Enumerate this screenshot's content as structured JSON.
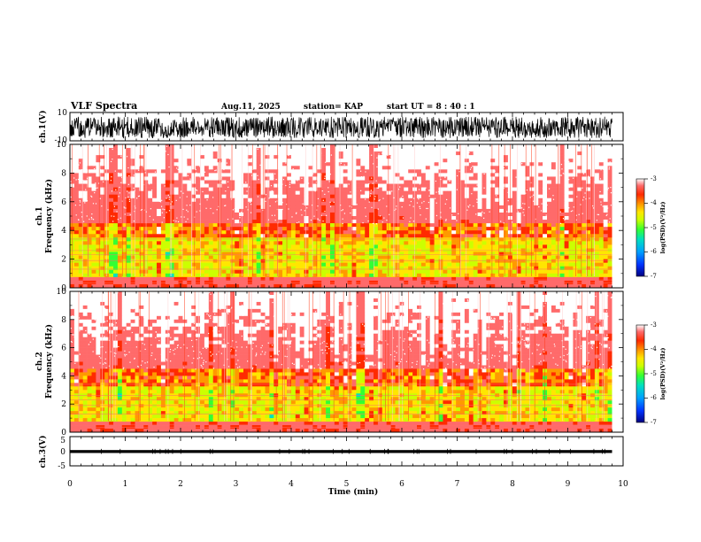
{
  "header": {
    "title": "VLF Spectra",
    "date": "Aug.11, 2025",
    "station": "station= KAP",
    "start_ut": "start  UT  =   8  : 40 : 1"
  },
  "colors": {
    "spectrogram_scale": [
      "#000080",
      "#0033ff",
      "#00a0ff",
      "#00e0c0",
      "#33ff33",
      "#ccff00",
      "#ffe600",
      "#ff9900",
      "#ff2a00",
      "#ff6a6a",
      "#ffffff"
    ],
    "waveform": "#000000"
  },
  "chart_data": [
    {
      "id": "ch1_waveform",
      "type": "line",
      "ylabel": "ch.1(V)",
      "ylim": [
        -10,
        10
      ],
      "ytick_labels": [
        "10",
        "-10"
      ],
      "xlim": [
        0,
        10
      ],
      "description_values": {
        "amplitude_range_V": [
          -8,
          7
        ],
        "data_end_min": 9.8
      }
    },
    {
      "id": "ch1_spectrogram",
      "type": "heatmap",
      "ylabel_line1": "ch.1",
      "ylabel_line2": "Frequency  (kHz)",
      "ylim": [
        0,
        10
      ],
      "yticks": [
        0,
        2,
        4,
        6,
        8,
        10
      ],
      "ytick_labels": [
        "0",
        "2",
        "4",
        "6",
        "8",
        "10"
      ],
      "xlim": [
        0,
        10
      ],
      "data_end_min": 9.8,
      "bands_kHz": {
        "low_noise_red": [
          0,
          0.8
        ],
        "green_yellow": [
          1.0,
          3.4
        ],
        "yellow_red_transition": [
          3.4,
          4.5
        ],
        "red_white_speckle": [
          4.5,
          10
        ]
      },
      "colorbar": {
        "title": "log(PSD)(V²/Hz)",
        "range": [
          -7,
          -3
        ],
        "tick_labels": [
          "-3",
          "-4",
          "-5",
          "-6",
          "-7"
        ]
      }
    },
    {
      "id": "ch2_spectrogram",
      "type": "heatmap",
      "ylabel_line1": "ch.2",
      "ylabel_line2": "Frequency  (kHz)",
      "ylim": [
        0,
        10
      ],
      "yticks": [
        0,
        2,
        4,
        6,
        8,
        10
      ],
      "ytick_labels": [
        "0",
        "2",
        "4",
        "6",
        "8",
        "10"
      ],
      "xlim": [
        0,
        10
      ],
      "data_end_min": 9.8,
      "bands_kHz": {
        "low_noise_red": [
          0,
          0.8
        ],
        "green_yellow": [
          1.0,
          3.2
        ],
        "yellow_red_transition": [
          3.2,
          4.5
        ],
        "red_white_speckle": [
          4.5,
          10
        ]
      },
      "colorbar": {
        "title": "log(PSD)(V²/Hz)",
        "range": [
          -7,
          -3
        ],
        "tick_labels": [
          "-3",
          "-4",
          "-5",
          "-6",
          "-7"
        ]
      }
    },
    {
      "id": "ch3_waveform",
      "type": "line",
      "ylabel": "ch.3(V)",
      "ylim": [
        -5,
        5
      ],
      "ytick_labels": [
        "5",
        "0",
        "-5"
      ],
      "xlim": [
        0,
        10
      ],
      "description_values": {
        "amplitude_range_V": [
          -0.6,
          0.4
        ],
        "data_end_min": 9.8
      }
    },
    {
      "id": "time_axis",
      "xlabel": "Time  (min)",
      "xticks": [
        0,
        1,
        2,
        3,
        4,
        5,
        6,
        7,
        8,
        9,
        10
      ],
      "xtick_labels": [
        "0",
        "1",
        "2",
        "3",
        "4",
        "5",
        "6",
        "7",
        "8",
        "9",
        "10"
      ]
    }
  ]
}
